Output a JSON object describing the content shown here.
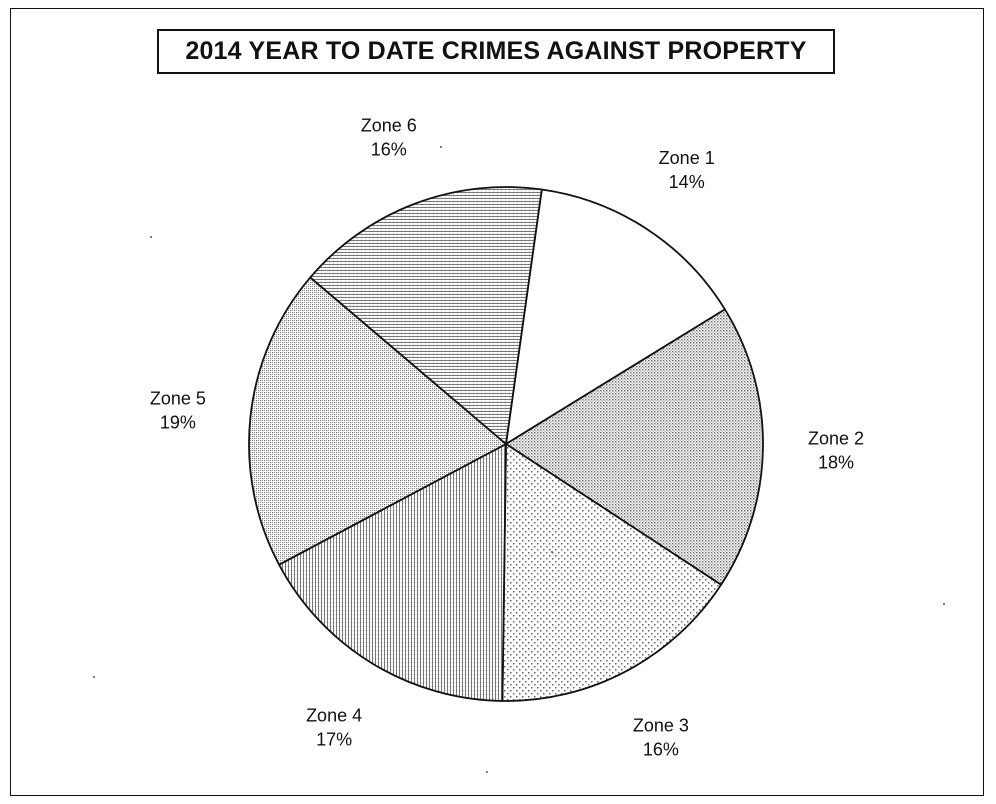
{
  "chart_data": {
    "type": "pie",
    "title": "2014 YEAR TO DATE CRIMES AGAINST PROPERTY",
    "slices": [
      {
        "label": "Zone 1",
        "value": 14,
        "value_label": "14%",
        "pattern": "blank"
      },
      {
        "label": "Zone 2",
        "value": 18,
        "value_label": "18%",
        "pattern": "dense-dots"
      },
      {
        "label": "Zone 3",
        "value": 16,
        "value_label": "16%",
        "pattern": "sparse-dots"
      },
      {
        "label": "Zone 4",
        "value": 17,
        "value_label": "17%",
        "pattern": "vertical-lines"
      },
      {
        "label": "Zone 5",
        "value": 19,
        "value_label": "19%",
        "pattern": "cross-hatch"
      },
      {
        "label": "Zone 6",
        "value": 16,
        "value_label": "16%",
        "pattern": "horizontal-lines"
      }
    ],
    "start_angle_deg": 8,
    "direction": "clockwise",
    "legend": "none",
    "colors": {
      "stroke": "#111111",
      "fill": "#ffffff",
      "pattern_ink": "#6a6a6a"
    }
  }
}
